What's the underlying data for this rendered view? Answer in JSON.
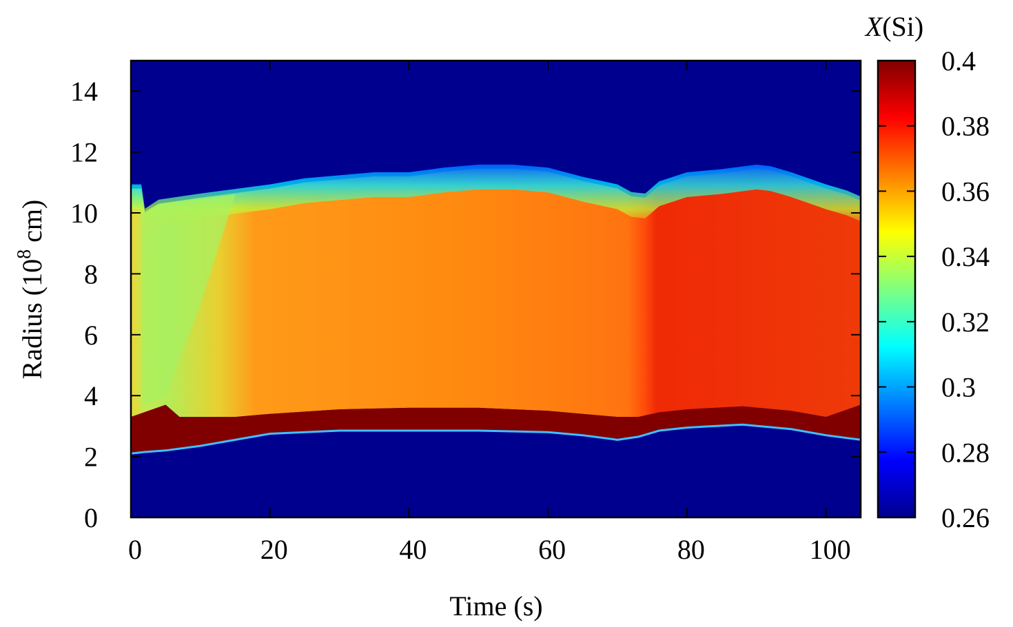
{
  "chart_data": {
    "type": "heatmap",
    "title": "",
    "xlabel": "Time (s)",
    "ylabel_main": "Radius (10",
    "ylabel_sup": "8",
    "ylabel_tail": " cm)",
    "xlim": [
      0,
      105
    ],
    "ylim": [
      0,
      15
    ],
    "xticks": [
      0,
      20,
      40,
      60,
      80,
      100
    ],
    "yticks": [
      0,
      2,
      4,
      6,
      8,
      10,
      12,
      14
    ],
    "colorbar": {
      "label_italic": "X",
      "label_rest": "(Si)",
      "range": [
        0.26,
        0.4
      ],
      "ticks": [
        "0.26",
        "0.28",
        "0.3",
        "0.32",
        "0.34",
        "0.36",
        "0.38",
        "0.4"
      ],
      "colormap": "jet"
    },
    "regions": [
      {
        "name": "background",
        "value": 0.26
      },
      {
        "name": "inner-rich-shell",
        "value": 0.4,
        "time_s": [
          0,
          105
        ]
      },
      {
        "name": "middle-layer-early",
        "value": 0.335,
        "time_s": [
          0,
          18
        ]
      },
      {
        "name": "middle-layer-mid",
        "value": 0.365,
        "time_s": [
          18,
          74
        ]
      },
      {
        "name": "middle-layer-late",
        "value": 0.378,
        "time_s": [
          74,
          105
        ]
      }
    ],
    "inner_boundary": {
      "time": [
        0,
        2,
        5,
        10,
        20,
        30,
        40,
        50,
        60,
        65,
        70,
        73,
        76,
        80,
        88,
        95,
        100,
        105
      ],
      "radius": [
        2.1,
        2.15,
        2.2,
        2.35,
        2.75,
        2.85,
        2.85,
        2.85,
        2.8,
        2.7,
        2.55,
        2.65,
        2.85,
        2.95,
        3.05,
        2.9,
        2.7,
        2.55
      ]
    },
    "dense_shell_top": {
      "time": [
        0,
        5,
        7,
        15,
        20,
        30,
        40,
        50,
        60,
        65,
        70,
        73,
        76,
        80,
        88,
        95,
        100,
        105
      ],
      "radius": [
        3.3,
        3.7,
        3.3,
        3.3,
        3.4,
        3.55,
        3.6,
        3.6,
        3.5,
        3.4,
        3.3,
        3.3,
        3.45,
        3.55,
        3.65,
        3.5,
        3.3,
        3.7
      ]
    },
    "outer_boundary": {
      "time": [
        0,
        1.5,
        2,
        4,
        10,
        20,
        25,
        30,
        35,
        40,
        45,
        50,
        55,
        60,
        65,
        70,
        72,
        74,
        76,
        80,
        85,
        90,
        92,
        95,
        100,
        103,
        105
      ],
      "radius": [
        10.8,
        10.8,
        10.0,
        10.3,
        10.5,
        10.8,
        11.0,
        11.1,
        11.2,
        11.2,
        11.35,
        11.45,
        11.45,
        11.35,
        11.05,
        10.8,
        10.55,
        10.5,
        10.9,
        11.2,
        11.3,
        11.45,
        11.4,
        11.2,
        10.8,
        10.6,
        10.4
      ]
    }
  }
}
